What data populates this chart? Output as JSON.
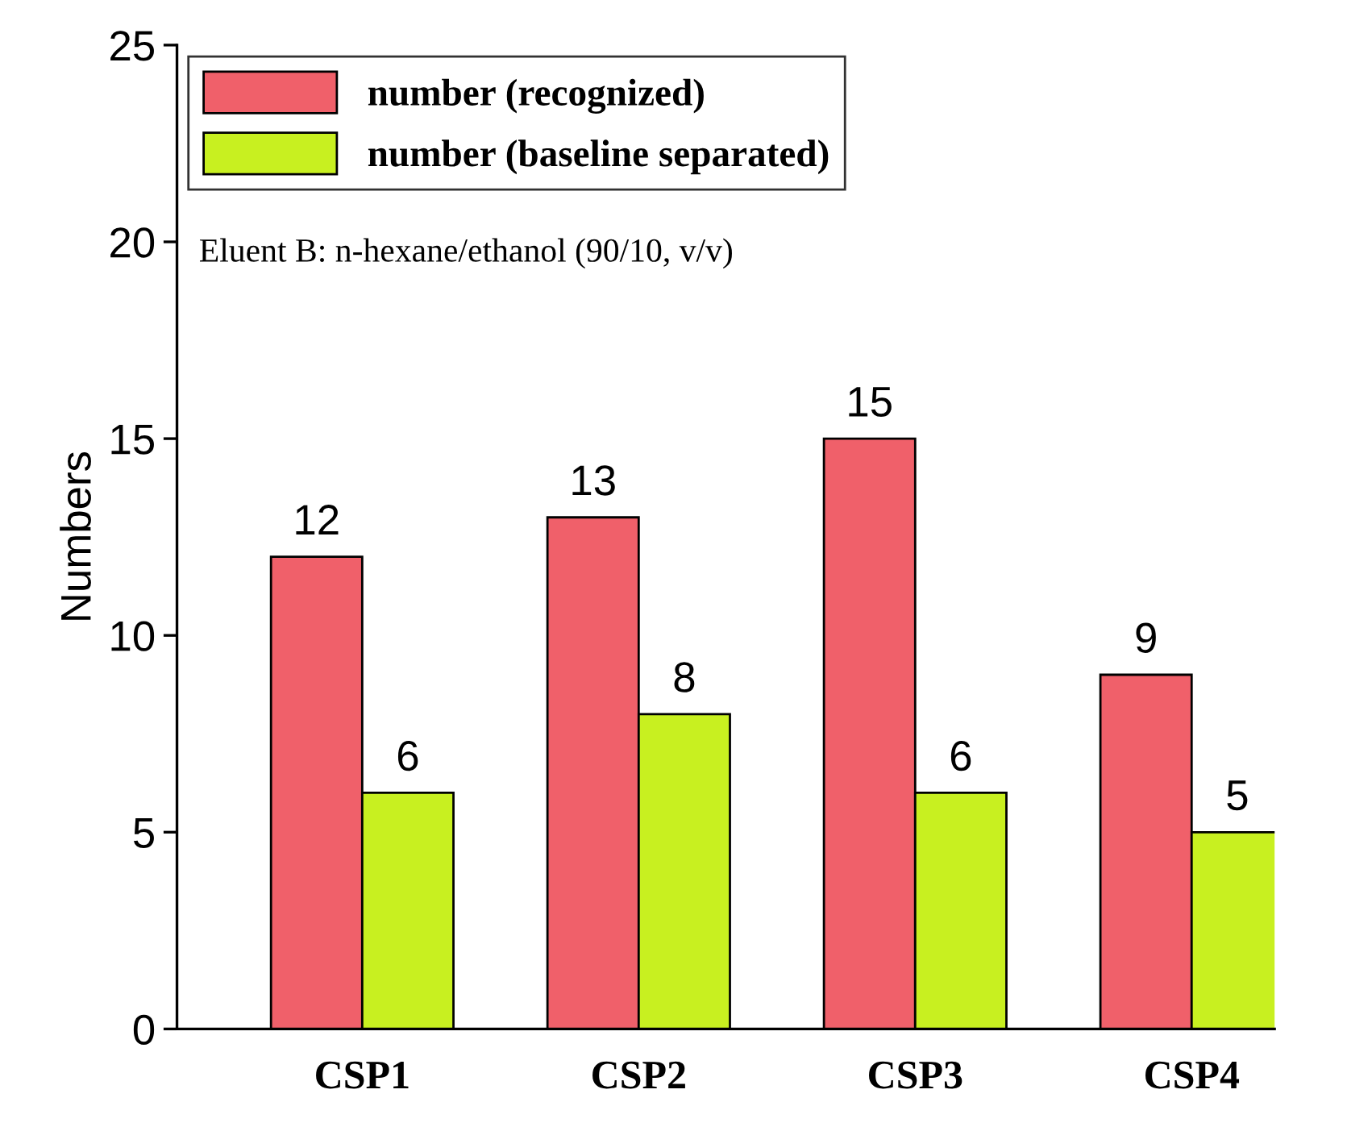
{
  "chart_data": {
    "type": "bar",
    "categories": [
      "CSP1",
      "CSP2",
      "CSP3",
      "CSP4"
    ],
    "series": [
      {
        "name": "number (recognized)",
        "color": "#f0606a",
        "values": [
          12,
          13,
          15,
          9
        ]
      },
      {
        "name": "number (baseline separated)",
        "color": "#c8f020",
        "values": [
          6,
          8,
          6,
          5
        ]
      }
    ],
    "ylabel": "Numbers",
    "ylim": [
      0,
      25
    ],
    "yticks": [
      0,
      5,
      10,
      15,
      20,
      25
    ],
    "annotations": [
      "Eluent B: n-hexane/ethanol (90/10, v/v)"
    ],
    "data_labels": true,
    "legend": "top left",
    "grid": false
  }
}
